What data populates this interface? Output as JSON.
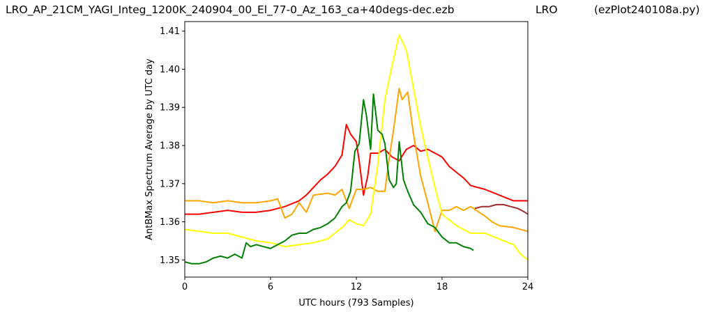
{
  "header": {
    "filename": "LRO_AP_21CM_YAGI_Integ_1200K_240904_00_El_77-0_Az_163_ca+40degs-dec.ezb",
    "site": "LRO",
    "script": "(ezPlot240108a.py)"
  },
  "chart_data": {
    "type": "line",
    "xlabel": "UTC hours  (793 Samples)",
    "ylabel": "AntBMax Spectrum Average by UTC day",
    "xlim": [
      0,
      24
    ],
    "ylim": [
      1.3455,
      1.4125
    ],
    "xticks": [
      "0",
      "6",
      "12",
      "18",
      "24"
    ],
    "xtick_values": [
      0,
      6,
      12,
      18,
      24
    ],
    "yticks": [
      "1.35",
      "1.36",
      "1.37",
      "1.38",
      "1.39",
      "1.40",
      "1.41"
    ],
    "ytick_values": [
      1.35,
      1.36,
      1.37,
      1.38,
      1.39,
      1.4,
      1.41
    ],
    "grid": false,
    "series": [
      {
        "color": "#ff0000",
        "x": [
          0,
          1,
          2,
          3,
          4,
          5,
          6,
          7,
          8,
          8.5,
          9,
          9.5,
          10,
          10.5,
          11,
          11.3,
          11.6,
          12,
          12.2,
          12.5,
          12.8,
          13,
          13.5,
          14,
          14.5,
          15,
          15.5,
          16,
          16.5,
          17,
          17.5,
          18,
          18.5,
          19,
          19.5,
          20,
          21,
          22,
          23,
          24
        ],
        "y": [
          1.362,
          1.362,
          1.3625,
          1.363,
          1.3625,
          1.3625,
          1.363,
          1.364,
          1.3655,
          1.367,
          1.369,
          1.371,
          1.3725,
          1.3745,
          1.3775,
          1.3855,
          1.383,
          1.381,
          1.376,
          1.367,
          1.372,
          1.378,
          1.378,
          1.379,
          1.377,
          1.376,
          1.379,
          1.38,
          1.3785,
          1.379,
          1.378,
          1.377,
          1.3745,
          1.373,
          1.3715,
          1.3695,
          1.3685,
          1.367,
          1.3655,
          1.3655
        ]
      },
      {
        "color": "#ffa500",
        "x": [
          0,
          1,
          2,
          3,
          4,
          5,
          6,
          6.5,
          7,
          7.5,
          8,
          8.5,
          9,
          10,
          10.5,
          11,
          11.5,
          12,
          12.5,
          13,
          13.5,
          14,
          14.3,
          14.6,
          15,
          15.2,
          15.6,
          16,
          16.5,
          17,
          17.5,
          18,
          18.5,
          19,
          19.5,
          20,
          21,
          21.5,
          22,
          23,
          24
        ],
        "y": [
          1.3655,
          1.3655,
          1.365,
          1.3655,
          1.365,
          1.365,
          1.3655,
          1.366,
          1.361,
          1.362,
          1.365,
          1.3625,
          1.367,
          1.3675,
          1.367,
          1.3685,
          1.3635,
          1.3685,
          1.3685,
          1.369,
          1.368,
          1.368,
          1.3765,
          1.384,
          1.395,
          1.392,
          1.394,
          1.383,
          1.372,
          1.365,
          1.3575,
          1.363,
          1.363,
          1.364,
          1.363,
          1.364,
          1.3615,
          1.36,
          1.359,
          1.3585,
          1.3575
        ]
      },
      {
        "color": "#ffff00",
        "x": [
          0,
          1,
          2,
          3,
          4,
          5,
          6,
          7,
          8,
          9,
          10,
          10.5,
          11,
          11.5,
          12,
          12.5,
          13,
          13.5,
          14,
          14.5,
          15,
          15.5,
          16,
          16.5,
          17,
          17.5,
          18,
          19,
          20,
          21,
          22,
          23,
          23.5,
          24
        ],
        "y": [
          1.358,
          1.3575,
          1.357,
          1.357,
          1.356,
          1.355,
          1.3545,
          1.3535,
          1.354,
          1.3545,
          1.3555,
          1.357,
          1.3585,
          1.3605,
          1.3595,
          1.359,
          1.362,
          1.375,
          1.392,
          1.401,
          1.409,
          1.405,
          1.395,
          1.385,
          1.377,
          1.369,
          1.362,
          1.359,
          1.357,
          1.357,
          1.3555,
          1.354,
          1.3515,
          1.35
        ]
      },
      {
        "color": "#008000",
        "x": [
          0,
          0.5,
          1,
          1.5,
          2,
          2.5,
          3,
          3.5,
          4,
          4.3,
          4.6,
          5,
          5.5,
          6,
          6.5,
          7,
          7.5,
          8,
          8.5,
          9,
          9.5,
          10,
          10.5,
          11,
          11.3,
          11.6,
          11.9,
          12.2,
          12.5,
          12.7,
          13,
          13.2,
          13.5,
          13.8,
          14,
          14.3,
          14.6,
          14.8,
          15,
          15.3,
          15.6,
          16,
          16.5,
          17,
          17.5,
          18,
          18.5,
          19,
          19.5,
          20,
          20.2
        ],
        "y": [
          1.3495,
          1.349,
          1.349,
          1.3495,
          1.3505,
          1.351,
          1.3505,
          1.3515,
          1.3505,
          1.3545,
          1.3535,
          1.354,
          1.3535,
          1.353,
          1.354,
          1.355,
          1.3565,
          1.357,
          1.357,
          1.358,
          1.3585,
          1.3595,
          1.361,
          1.364,
          1.365,
          1.368,
          1.3785,
          1.3805,
          1.392,
          1.388,
          1.379,
          1.3935,
          1.384,
          1.383,
          1.3805,
          1.371,
          1.369,
          1.37,
          1.381,
          1.371,
          1.368,
          1.3645,
          1.3625,
          1.3595,
          1.3585,
          1.356,
          1.3545,
          1.3545,
          1.3535,
          1.353,
          1.3525
        ]
      },
      {
        "color": "#a52a2a",
        "x": [
          20.3,
          20.8,
          21.3,
          21.8,
          22.3,
          22.8,
          23.3,
          23.8,
          24
        ],
        "y": [
          1.3635,
          1.364,
          1.364,
          1.3645,
          1.3645,
          1.364,
          1.3635,
          1.3625,
          1.362
        ]
      }
    ]
  }
}
